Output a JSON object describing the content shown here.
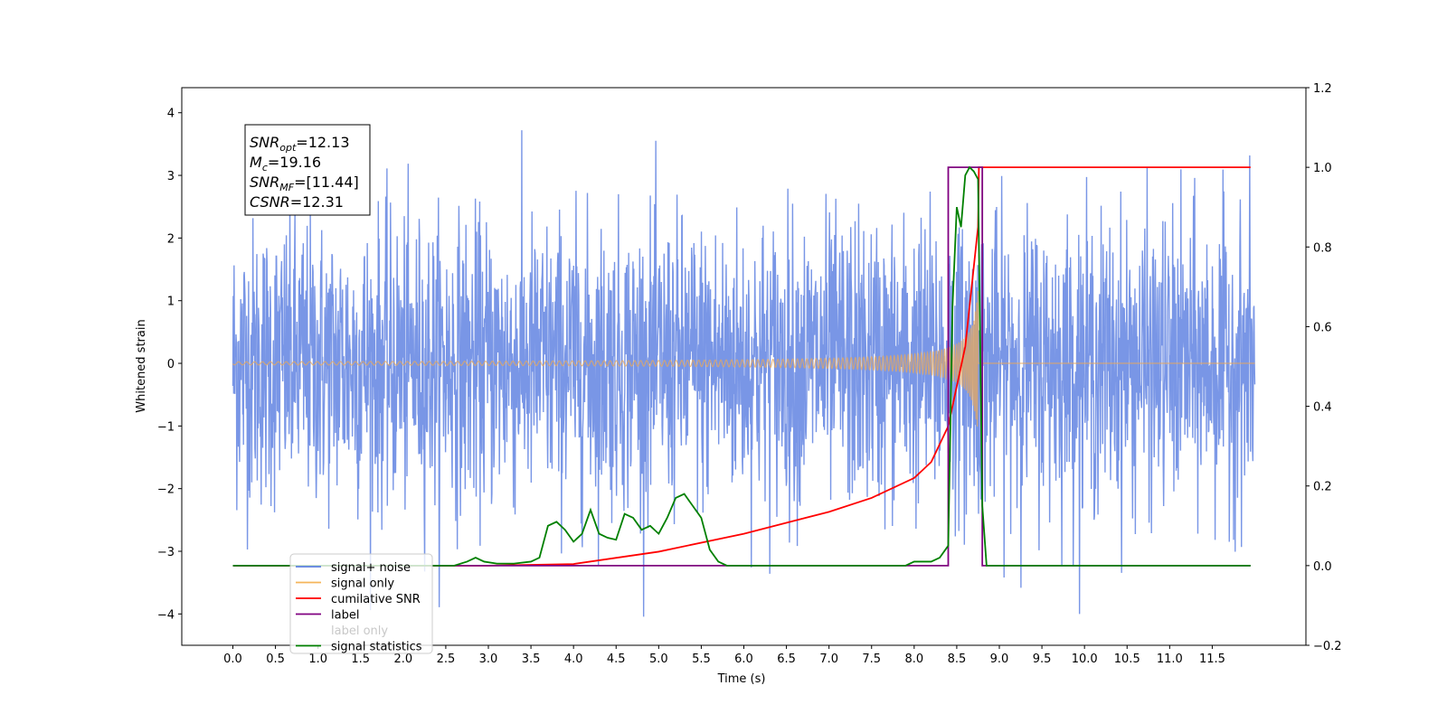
{
  "chart_data": {
    "type": "line",
    "title": "",
    "xlabel": "Time (s)",
    "ylabel": "Whitened strain",
    "xlim": [
      -0.6,
      12.6
    ],
    "ylim": [
      -4.5,
      4.4
    ],
    "y2lim": [
      -0.2,
      1.2
    ],
    "x_ticks": [
      "0.0",
      "0.5",
      "1.0",
      "1.5",
      "2.0",
      "2.5",
      "3.0",
      "3.5",
      "4.0",
      "4.5",
      "5.0",
      "5.5",
      "6.0",
      "6.5",
      "7.0",
      "7.5",
      "8.0",
      "8.5",
      "9.0",
      "9.5",
      "10.0",
      "10.5",
      "11.0",
      "11.5"
    ],
    "y_ticks": [
      "4",
      "3",
      "2",
      "1",
      "0",
      "−1",
      "−2",
      "−3",
      "−4"
    ],
    "y2_ticks": [
      "1.2",
      "1.0",
      "0.8",
      "0.6",
      "0.4",
      "0.2",
      "0.0",
      "−0.2"
    ],
    "grid": false,
    "legend_placement": "lower-left",
    "annotation": {
      "lines": [
        {
          "sym": "SNR",
          "sub": "opt",
          "val": "=12.13"
        },
        {
          "sym": "M",
          "sub": "c",
          "val": "=19.16"
        },
        {
          "sym": "SNR",
          "sub": "MF",
          "val": "=[11.44]"
        },
        {
          "sym": "CSNR",
          "sub": "",
          "val": "=12.31"
        }
      ]
    },
    "series": [
      {
        "name": "signal+ noise",
        "color": "#5b7fe0",
        "axis": "left",
        "description_range": [
          0.0,
          12.0
        ],
        "amplitude_typical": 1.2,
        "amplitude_peak": 4.0
      },
      {
        "name": "signal only",
        "color": "#e8a85c",
        "axis": "left",
        "chirp_start": 0.0,
        "chirp_end": 8.75,
        "peak_amplitude": 1.2
      },
      {
        "name": "cumilative SNR",
        "color": "#ff0000",
        "axis": "right",
        "x": [
          0.0,
          3.0,
          4.0,
          5.0,
          6.0,
          7.0,
          7.5,
          8.0,
          8.2,
          8.4,
          8.6,
          8.75,
          8.76,
          11.95
        ],
        "y": [
          0.0,
          0.0,
          0.004,
          0.035,
          0.08,
          0.135,
          0.17,
          0.22,
          0.26,
          0.35,
          0.55,
          0.85,
          1.0,
          1.0
        ]
      },
      {
        "name": "label",
        "color": "#800080",
        "axis": "right",
        "x": [
          0.0,
          8.4,
          8.4,
          8.8,
          8.8,
          11.95
        ],
        "y": [
          0.0,
          0.0,
          1.0,
          1.0,
          0.0,
          0.0
        ]
      },
      {
        "name": "signal statistics",
        "color": "#008000",
        "axis": "right",
        "x": [
          0.0,
          2.6,
          2.75,
          2.85,
          2.95,
          3.1,
          3.3,
          3.5,
          3.6,
          3.7,
          3.8,
          3.9,
          4.0,
          4.1,
          4.2,
          4.3,
          4.4,
          4.5,
          4.6,
          4.7,
          4.8,
          4.9,
          5.0,
          5.1,
          5.2,
          5.3,
          5.4,
          5.5,
          5.6,
          5.7,
          5.8,
          6.0,
          7.9,
          8.0,
          8.1,
          8.2,
          8.3,
          8.4,
          8.45,
          8.5,
          8.55,
          8.6,
          8.65,
          8.7,
          8.75,
          8.8,
          8.85,
          11.95
        ],
        "y": [
          0.0,
          0.0,
          0.01,
          0.02,
          0.01,
          0.005,
          0.005,
          0.01,
          0.02,
          0.1,
          0.11,
          0.09,
          0.06,
          0.08,
          0.14,
          0.08,
          0.07,
          0.065,
          0.13,
          0.12,
          0.09,
          0.1,
          0.08,
          0.12,
          0.17,
          0.18,
          0.15,
          0.12,
          0.04,
          0.01,
          0.0,
          0.0,
          0.0,
          0.01,
          0.01,
          0.01,
          0.02,
          0.05,
          0.65,
          0.9,
          0.85,
          0.98,
          1.0,
          0.99,
          0.97,
          0.15,
          0.0,
          0.0
        ]
      }
    ],
    "legend": [
      {
        "label": "signal+ noise",
        "color": "#5b7fe0"
      },
      {
        "label": "signal only",
        "color": "#f5b55a"
      },
      {
        "label": "cumilative SNR",
        "color": "#ff0000"
      },
      {
        "label": "label",
        "color": "#800080"
      },
      {
        "label": "label only",
        "color": "#d0d0d0",
        "faded": true
      },
      {
        "label": "signal statistics",
        "color": "#008000"
      }
    ]
  }
}
